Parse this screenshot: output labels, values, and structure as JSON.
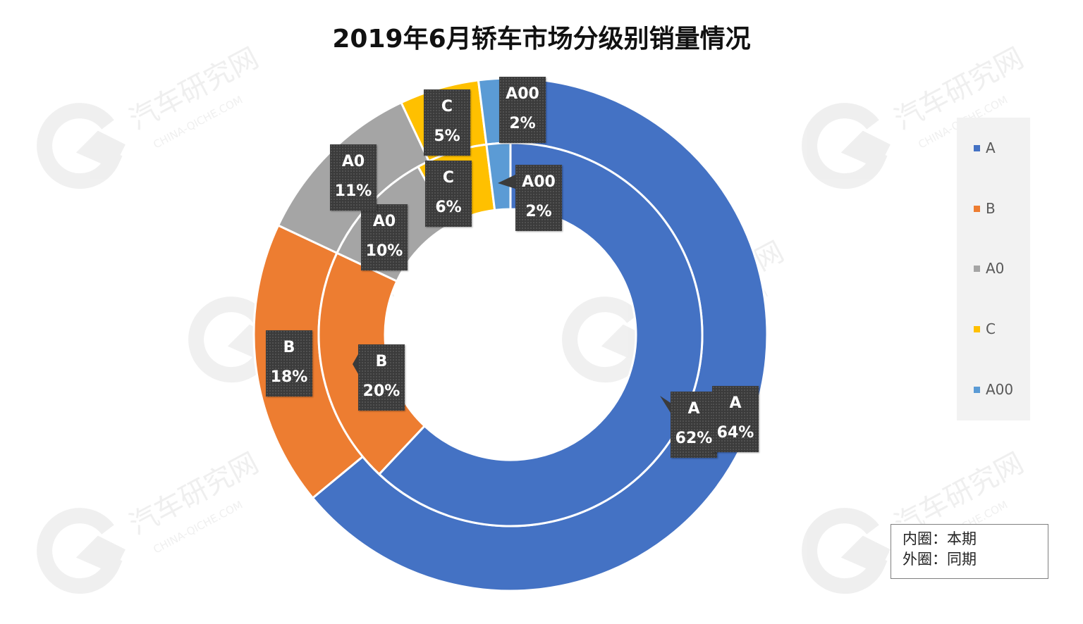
{
  "chart_data": {
    "type": "donut",
    "title": "2019年6月轿车市场分级别销量情况",
    "legend": {
      "placement": "right",
      "entries": [
        "A",
        "B",
        "A0",
        "C",
        "A00"
      ]
    },
    "colors": {
      "A": "#4472c4",
      "B": "#ed7d31",
      "A0": "#a5a5a5",
      "C": "#ffc000",
      "A00": "#5b9bd5"
    },
    "series": [
      {
        "ring": "inner",
        "categories": [
          "A",
          "B",
          "A0",
          "C",
          "A00"
        ],
        "values": [
          62,
          20,
          10,
          6,
          2
        ],
        "labels": [
          "62%",
          "20%",
          "10%",
          "6%",
          "2%"
        ]
      },
      {
        "ring": "outer",
        "categories": [
          "A",
          "B",
          "A0",
          "C",
          "A00"
        ],
        "values": [
          64,
          18,
          11,
          5,
          2
        ],
        "labels": [
          "64%",
          "18%",
          "11%",
          "5%",
          "2%"
        ]
      }
    ],
    "note": [
      "内圈：本期",
      "外圈：同期"
    ]
  },
  "watermark": {
    "text": "汽车研究网",
    "subtext": "CHINA-QICHE.COM"
  }
}
